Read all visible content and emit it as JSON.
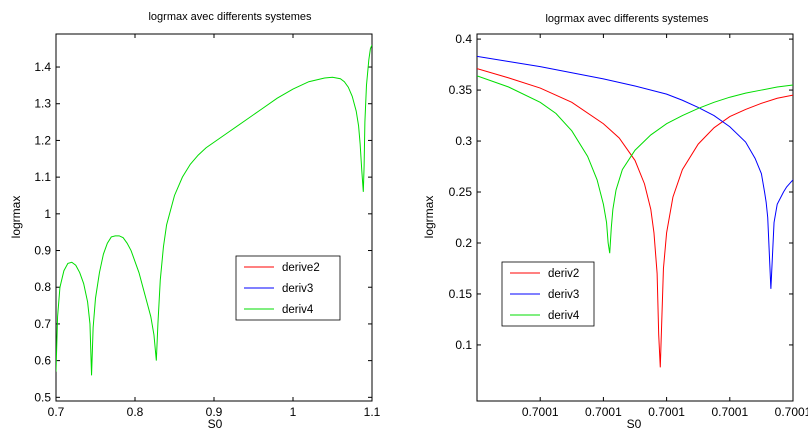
{
  "chart_data": [
    {
      "type": "line",
      "title": "logrmax avec differents systemes",
      "xlabel": "S0",
      "ylabel": "logrmax",
      "xlim": [
        0.7,
        1.1
      ],
      "ylim": [
        0.49,
        1.49
      ],
      "x_ticks": [
        0.7,
        0.8,
        0.9,
        1.0,
        1.1
      ],
      "x_tick_labels": [
        "0.7",
        "0.8",
        "0.9",
        "1",
        "1.1"
      ],
      "y_ticks": [
        0.5,
        0.6,
        0.7,
        0.8,
        0.9,
        1.0,
        1.1,
        1.2,
        1.3,
        1.4
      ],
      "y_tick_labels": [
        "0.5",
        "0.6",
        "0.7",
        "0.8",
        "0.9",
        "1",
        "1.1",
        "1.2",
        "1.3",
        "1.4"
      ],
      "grid": false,
      "legend": "center-right",
      "legend_entries": [
        "derive2",
        "deriv3",
        "deriv4"
      ],
      "series": [
        {
          "name": "derive2",
          "color": "#ff0000",
          "x": [],
          "y": []
        },
        {
          "name": "deriv3",
          "color": "#0000ff",
          "x": [],
          "y": []
        },
        {
          "name": "deriv4",
          "color": "#00dd00",
          "x": [
            0.7,
            0.702,
            0.705,
            0.71,
            0.715,
            0.72,
            0.725,
            0.73,
            0.735,
            0.74,
            0.743,
            0.745,
            0.747,
            0.75,
            0.755,
            0.76,
            0.765,
            0.77,
            0.775,
            0.78,
            0.785,
            0.79,
            0.795,
            0.8,
            0.805,
            0.81,
            0.815,
            0.82,
            0.824,
            0.827,
            0.829,
            0.832,
            0.836,
            0.84,
            0.85,
            0.86,
            0.87,
            0.88,
            0.89,
            0.9,
            0.92,
            0.94,
            0.96,
            0.98,
            1.0,
            1.02,
            1.04,
            1.05,
            1.06,
            1.065,
            1.07,
            1.075,
            1.08,
            1.083,
            1.085,
            1.087,
            1.089,
            1.09,
            1.091,
            1.093,
            1.096,
            1.098,
            1.1
          ],
          "y": [
            0.57,
            0.72,
            0.8,
            0.845,
            0.865,
            0.868,
            0.86,
            0.84,
            0.81,
            0.76,
            0.7,
            0.56,
            0.69,
            0.77,
            0.84,
            0.89,
            0.92,
            0.937,
            0.94,
            0.94,
            0.935,
            0.92,
            0.9,
            0.87,
            0.84,
            0.8,
            0.76,
            0.72,
            0.67,
            0.6,
            0.7,
            0.82,
            0.91,
            0.97,
            1.05,
            1.1,
            1.135,
            1.16,
            1.18,
            1.195,
            1.225,
            1.255,
            1.285,
            1.315,
            1.34,
            1.36,
            1.37,
            1.372,
            1.368,
            1.36,
            1.345,
            1.32,
            1.28,
            1.24,
            1.19,
            1.12,
            1.06,
            1.13,
            1.25,
            1.35,
            1.42,
            1.45,
            1.46
          ]
        }
      ]
    },
    {
      "type": "line",
      "title": "logrmax avec differents systemes",
      "xlabel": "S0",
      "ylabel": "logrmax",
      "xlim": [
        0,
        1
      ],
      "ylim": [
        0.045,
        0.405
      ],
      "x_ticks": [
        0.2,
        0.4,
        0.6,
        0.8,
        1.0
      ],
      "x_tick_labels": [
        "0.7001",
        "0.7001",
        "0.7001",
        "0.7001",
        "0.7001"
      ],
      "y_ticks": [
        0.1,
        0.15,
        0.2,
        0.25,
        0.3,
        0.35,
        0.4
      ],
      "y_tick_labels": [
        "0.1",
        "0.15",
        "0.2",
        "0.25",
        "0.3",
        "0.35",
        "0.4"
      ],
      "grid": false,
      "legend": "bottom-left",
      "legend_entries": [
        "deriv2",
        "deriv3",
        "deriv4"
      ],
      "series": [
        {
          "name": "deriv2",
          "color": "#ff0000",
          "x": [
            0,
            0.1,
            0.2,
            0.3,
            0.4,
            0.45,
            0.5,
            0.53,
            0.55,
            0.56,
            0.565,
            0.57,
            0.575,
            0.58,
            0.59,
            0.6,
            0.62,
            0.65,
            0.7,
            0.75,
            0.8,
            0.85,
            0.9,
            0.95,
            1.0
          ],
          "y": [
            0.371,
            0.362,
            0.352,
            0.338,
            0.317,
            0.303,
            0.281,
            0.258,
            0.233,
            0.21,
            0.19,
            0.17,
            0.11,
            0.078,
            0.175,
            0.21,
            0.245,
            0.272,
            0.297,
            0.313,
            0.324,
            0.331,
            0.337,
            0.342,
            0.345
          ]
        },
        {
          "name": "deriv3",
          "color": "#0000ff",
          "x": [
            0,
            0.1,
            0.2,
            0.3,
            0.4,
            0.5,
            0.6,
            0.65,
            0.7,
            0.75,
            0.8,
            0.85,
            0.88,
            0.9,
            0.91,
            0.915,
            0.92,
            0.925,
            0.93,
            0.94,
            0.95,
            0.97,
            0.98,
            1.0
          ],
          "y": [
            0.383,
            0.378,
            0.373,
            0.367,
            0.361,
            0.354,
            0.346,
            0.34,
            0.333,
            0.325,
            0.314,
            0.299,
            0.283,
            0.268,
            0.25,
            0.24,
            0.225,
            0.19,
            0.155,
            0.22,
            0.238,
            0.25,
            0.255,
            0.262
          ]
        },
        {
          "name": "deriv4",
          "color": "#00dd00",
          "x": [
            0,
            0.1,
            0.2,
            0.25,
            0.3,
            0.35,
            0.38,
            0.4,
            0.41,
            0.415,
            0.42,
            0.425,
            0.43,
            0.44,
            0.46,
            0.5,
            0.55,
            0.6,
            0.65,
            0.7,
            0.75,
            0.8,
            0.85,
            0.9,
            0.95,
            1.0
          ],
          "y": [
            0.364,
            0.353,
            0.338,
            0.327,
            0.31,
            0.285,
            0.262,
            0.238,
            0.22,
            0.2,
            0.19,
            0.215,
            0.233,
            0.252,
            0.272,
            0.291,
            0.306,
            0.317,
            0.325,
            0.332,
            0.338,
            0.343,
            0.347,
            0.35,
            0.353,
            0.355
          ]
        }
      ]
    }
  ]
}
